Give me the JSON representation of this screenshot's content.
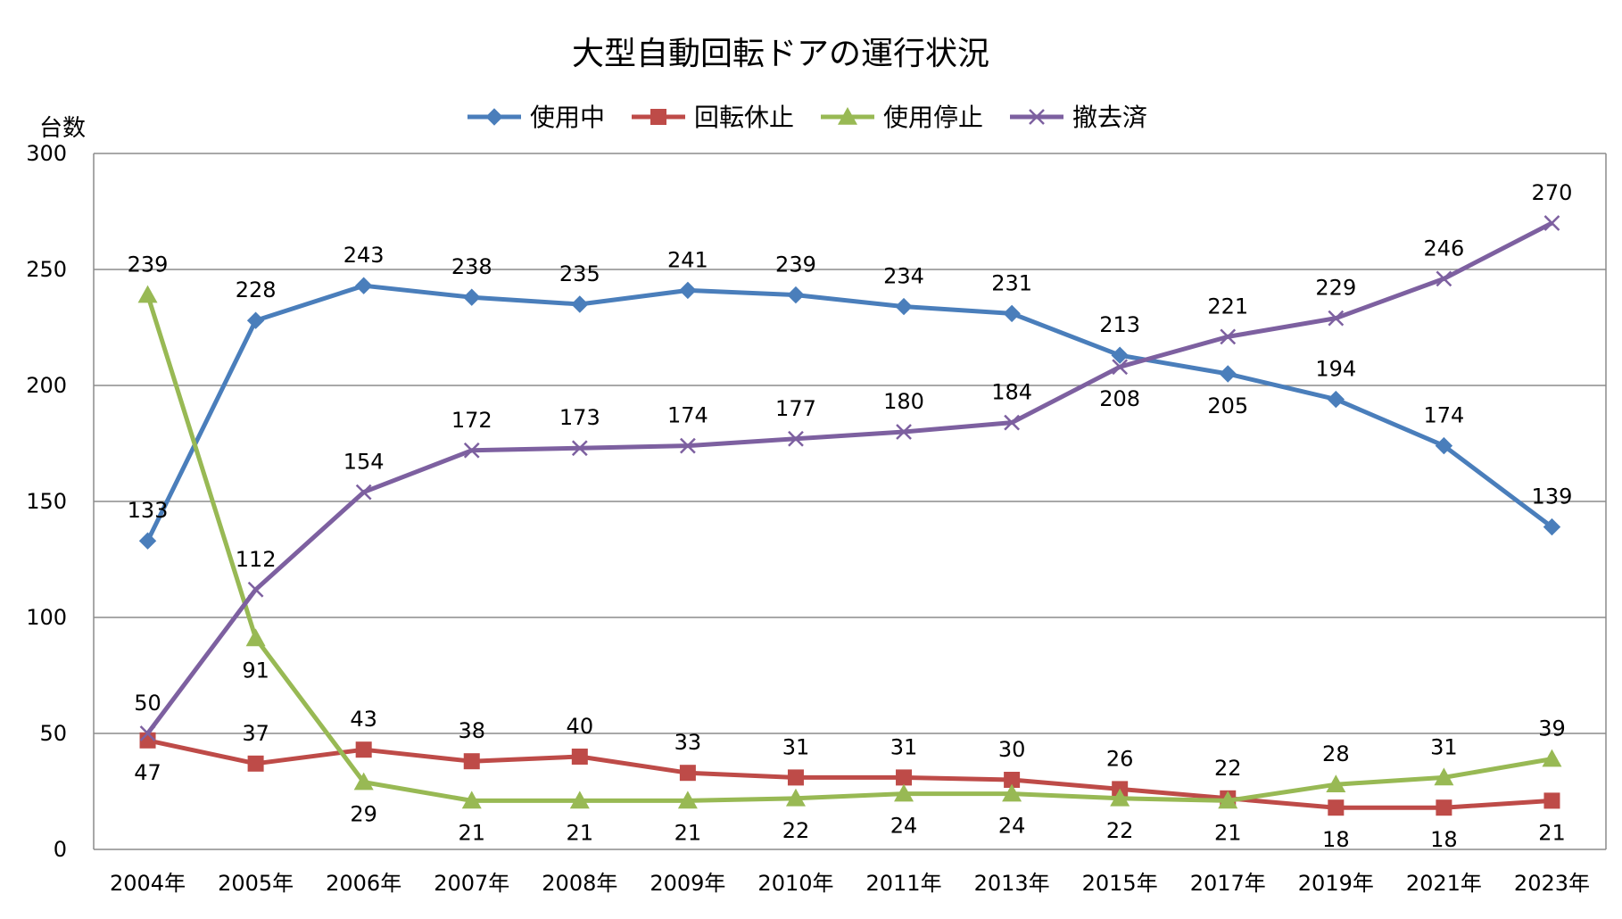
{
  "chart_data": {
    "type": "line",
    "title": "大型自動回転ドアの運行状況",
    "ylabel": "台数",
    "xlabel": "",
    "ylim": [
      0,
      300
    ],
    "yticks": [
      0,
      50,
      100,
      150,
      200,
      250,
      300
    ],
    "grid": true,
    "legend_position": "top",
    "categories": [
      "2004年",
      "2005年",
      "2006年",
      "2007年",
      "2008年",
      "2009年",
      "2010年",
      "2011年",
      "2013年",
      "2015年",
      "2017年",
      "2019年",
      "2021年",
      "2023年"
    ],
    "series": [
      {
        "name": "使用中",
        "color": "#4a7ebb",
        "marker": "diamond",
        "values": [
          133,
          228,
          243,
          238,
          235,
          241,
          239,
          234,
          231,
          213,
          205,
          194,
          174,
          139
        ]
      },
      {
        "name": "回転休止",
        "color": "#be4b48",
        "marker": "square",
        "values": [
          47,
          37,
          43,
          38,
          40,
          33,
          31,
          31,
          30,
          26,
          22,
          18,
          18,
          21
        ]
      },
      {
        "name": "使用停止",
        "color": "#98b954",
        "marker": "triangle",
        "values": [
          239,
          91,
          29,
          21,
          21,
          21,
          22,
          24,
          24,
          22,
          21,
          28,
          31,
          39
        ]
      },
      {
        "name": "撤去済",
        "color": "#7d60a0",
        "marker": "x",
        "values": [
          50,
          112,
          154,
          172,
          173,
          174,
          177,
          180,
          184,
          208,
          221,
          229,
          246,
          270
        ]
      }
    ]
  }
}
